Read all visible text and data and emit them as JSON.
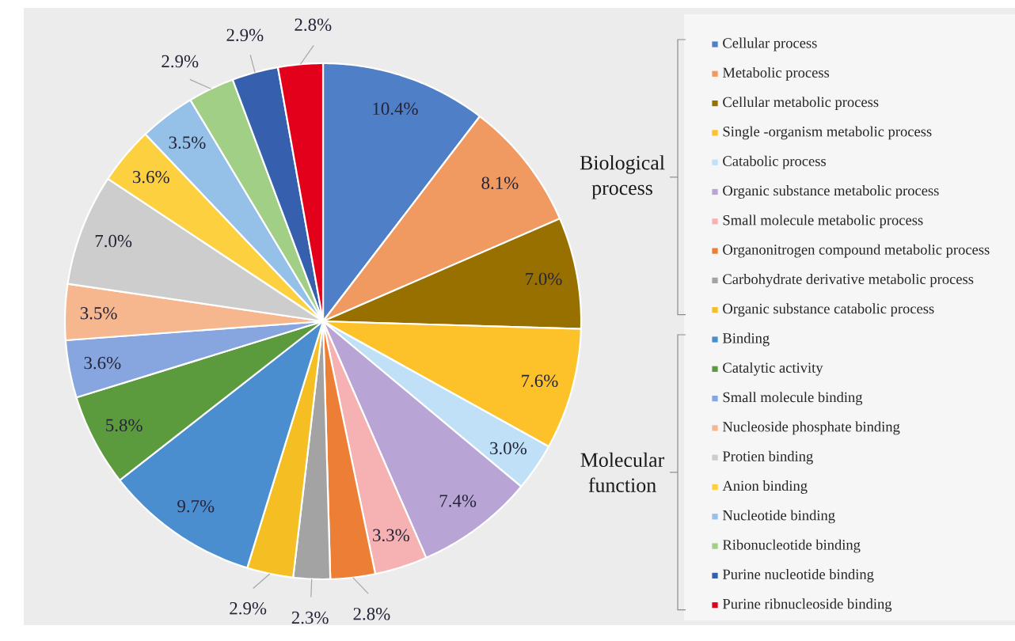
{
  "chart_data": {
    "type": "pie",
    "categories": [
      "Cellular process",
      "Metabolic process",
      "Cellular metabolic process",
      "Single -organism metabolic process",
      "Catabolic process",
      "Organic substance metabolic process",
      "Small molecule metabolic process",
      "Organonitrogen compound metabolic process",
      "Carbohydrate derivative metabolic process",
      "Organic substance catabolic process",
      "Binding",
      "Catalytic activity",
      "Small molecule binding",
      "Nucleoside phosphate binding",
      "Protien binding",
      "Anion binding",
      "Nucleotide binding",
      "Ribonucleotide binding",
      "Purine nucleotide binding",
      "Purine ribnucleoside binding"
    ],
    "values": [
      10.4,
      8.1,
      7.0,
      7.6,
      3.0,
      7.4,
      3.3,
      2.8,
      2.3,
      2.9,
      9.7,
      5.8,
      3.6,
      3.5,
      7.0,
      3.6,
      3.5,
      2.9,
      2.9,
      2.8
    ],
    "value_labels": [
      "10.4%",
      "8.1%",
      "7.0%",
      "7.6%",
      "3.0%",
      "7.4%",
      "3.3%",
      "2.8%",
      "2.3%",
      "2.9%",
      "9.7%",
      "5.8%",
      "3.6%",
      "3.5%",
      "7.0%",
      "3.6%",
      "3.5%",
      "2.9%",
      "2.9%",
      "2.8%"
    ],
    "colors": [
      "#4f7fc6",
      "#f09a62",
      "#987000",
      "#fdc22a",
      "#bfe0f6",
      "#b9a4d6",
      "#f6b1b3",
      "#ec7f35",
      "#a3a3a3",
      "#f5bf24",
      "#4a8ed0",
      "#5c9a3e",
      "#87a5de",
      "#f6b78e",
      "#cdcdcd",
      "#fdd03f",
      "#95c0e8",
      "#a1cf86",
      "#3660ad",
      "#e2001a"
    ],
    "legend": "right",
    "annotations": [
      "Biological process",
      "Molecular function"
    ]
  }
}
